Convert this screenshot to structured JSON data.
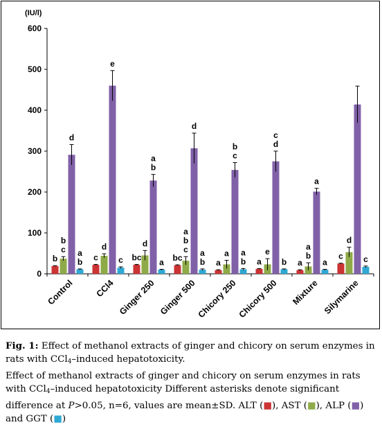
{
  "chart_data": {
    "type": "bar",
    "unit_label": "(IU/l)",
    "ylim": [
      0,
      600
    ],
    "yticks": [
      0,
      100,
      200,
      300,
      400,
      500,
      600
    ],
    "categories": [
      "Control",
      "CCl4",
      "Ginger 250",
      "Ginger 500",
      "Chicory 250",
      "Chicory 500",
      "Mixture",
      "Silymarine"
    ],
    "series": [
      {
        "name": "ALT",
        "color": "#cc3333",
        "values": [
          19,
          22,
          22,
          21,
          9,
          12,
          9,
          25
        ],
        "errors": [
          1,
          1,
          1,
          1,
          1,
          1,
          1,
          1
        ],
        "letters": [
          [
            "b"
          ],
          [
            "c"
          ],
          [
            "bc"
          ],
          [
            "bc"
          ],
          [
            "a"
          ],
          [
            "a"
          ],
          [
            "a"
          ],
          [
            "c"
          ]
        ]
      },
      {
        "name": "AST",
        "color": "#8faa48",
        "values": [
          37,
          44,
          45,
          32,
          23,
          23,
          18,
          53
        ],
        "errors": [
          5,
          5,
          12,
          10,
          10,
          14,
          9,
          12
        ],
        "letters": [
          [
            "b",
            "c"
          ],
          [
            "d"
          ],
          [
            "d"
          ],
          [
            "a",
            "b",
            "c"
          ],
          [
            "a"
          ],
          [
            "e"
          ],
          [
            "a",
            "b"
          ],
          [
            "d"
          ]
        ]
      },
      {
        "name": "ALP",
        "color": "#8061a8",
        "values": [
          291,
          460,
          228,
          307,
          254,
          275,
          201,
          414
        ],
        "errors": [
          25,
          37,
          15,
          37,
          18,
          25,
          8,
          45
        ],
        "letters": [
          [
            "d"
          ],
          [
            "e"
          ],
          [
            "a",
            "b"
          ],
          [
            "d"
          ],
          [
            "b",
            "c"
          ],
          [
            "c",
            "d"
          ],
          [
            "a"
          ],
          []
        ]
      },
      {
        "name": "GGT",
        "color": "#2fa8d4",
        "values": [
          11,
          15,
          10,
          10,
          11,
          11,
          10,
          17
        ],
        "errors": [
          1,
          2,
          1,
          2,
          2,
          1,
          1,
          2
        ],
        "letters": [
          [
            "a",
            "b"
          ],
          [
            "c"
          ],
          [
            "a"
          ],
          [
            "a",
            "b"
          ],
          [
            "a",
            "b"
          ],
          [
            "b"
          ],
          [
            "a"
          ],
          [
            "c"
          ]
        ]
      }
    ],
    "grid": false,
    "legend": "none"
  },
  "caption": {
    "fig_label": "Fig. 1:",
    "line1_pre": "Effect of methanol extracts of ginger and chicory on serum enzymes in rats with CCl",
    "sub": "4",
    "line1_post": "–induced hepatotoxicity.",
    "line2_pre": "Effect of methanol extracts of ginger and chicory on serum enzymes in rats with CCl",
    "line2_mid": "–induced hepatotoxicity Different asterisks denote significant difference at ",
    "p_symbol": "P",
    "line2_post": ">0.05, n=6, values are mean±SD. ALT (",
    "alt_swatch": "■",
    "ast_label": "), AST (",
    "ast_swatch": "■",
    "alp_label": "), ALP (",
    "alp_swatch": "■",
    "ggt_label": ") and GGT (",
    "ggt_swatch": "■",
    "end": ")"
  }
}
